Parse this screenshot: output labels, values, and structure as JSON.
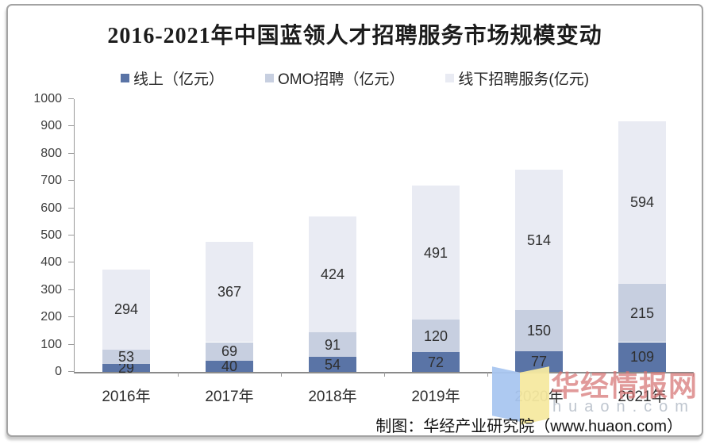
{
  "chart_data": {
    "type": "bar",
    "stacked": true,
    "title": "2016-2021年中国蓝领人才招聘服务市场规模变动",
    "categories": [
      "2016年",
      "2017年",
      "2018年",
      "2019年",
      "2020年",
      "2021年"
    ],
    "series": [
      {
        "name": "线上（亿元）",
        "color": "#5a74a6",
        "values": [
          29,
          40,
          54,
          72,
          77,
          109
        ]
      },
      {
        "name": "OMO招聘（亿元）",
        "color": "#c7cfe0",
        "values": [
          53,
          69,
          91,
          120,
          150,
          215
        ]
      },
      {
        "name": "线下招聘服务(亿元)",
        "color": "#e9ebf3",
        "values": [
          294,
          367,
          424,
          491,
          514,
          594
        ]
      }
    ],
    "ylim": [
      0,
      1000
    ],
    "ytick_step": 100,
    "legend_position": "top",
    "grid": false,
    "totals": [
      376,
      476,
      569,
      683,
      741,
      918
    ]
  },
  "watermark": {
    "brand_text": "华经情报网",
    "domain_text": "huaon.com",
    "logo_color_left": "#a9c6f0",
    "logo_color_right": "#f6e9a0",
    "brand_color": "#d57373"
  },
  "footer": {
    "attribution": "制图：华经产业研究院（www.huaon.com）"
  }
}
